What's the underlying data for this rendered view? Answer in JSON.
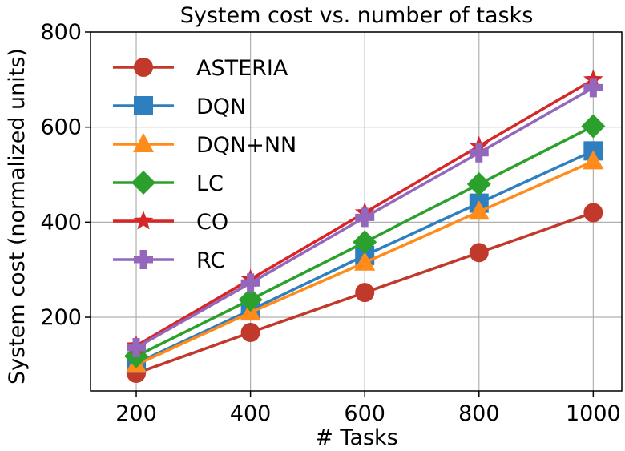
{
  "chart_data": {
    "type": "line",
    "title": "System cost vs. number of tasks",
    "xlabel": "# Tasks",
    "ylabel": "System cost (normalized units)",
    "x": [
      200,
      400,
      600,
      800,
      1000
    ],
    "xticks": [
      200,
      400,
      600,
      800,
      1000
    ],
    "yticks": [
      200,
      400,
      600,
      800
    ],
    "xlim": [
      120,
      1050
    ],
    "ylim": [
      45,
      800
    ],
    "grid": true,
    "legend_position": "top-left",
    "series": [
      {
        "name": "ASTERIA",
        "color": "#c0392b",
        "marker": "circle",
        "values": [
          82,
          168,
          252,
          336,
          420
        ]
      },
      {
        "name": "DQN",
        "color": "#2e7fbf",
        "marker": "square",
        "values": [
          103,
          215,
          330,
          440,
          550
        ]
      },
      {
        "name": "DQN+NN",
        "color": "#ff8c1a",
        "marker": "triangle",
        "values": [
          100,
          210,
          315,
          422,
          528
        ]
      },
      {
        "name": "LC",
        "color": "#2ca02c",
        "marker": "diamond",
        "values": [
          118,
          237,
          358,
          480,
          602
        ]
      },
      {
        "name": "CO",
        "color": "#d62728",
        "marker": "star",
        "values": [
          140,
          280,
          420,
          560,
          700
        ]
      },
      {
        "name": "RC",
        "color": "#9467bd",
        "marker": "plus",
        "values": [
          136,
          272,
          410,
          546,
          683
        ]
      }
    ]
  }
}
